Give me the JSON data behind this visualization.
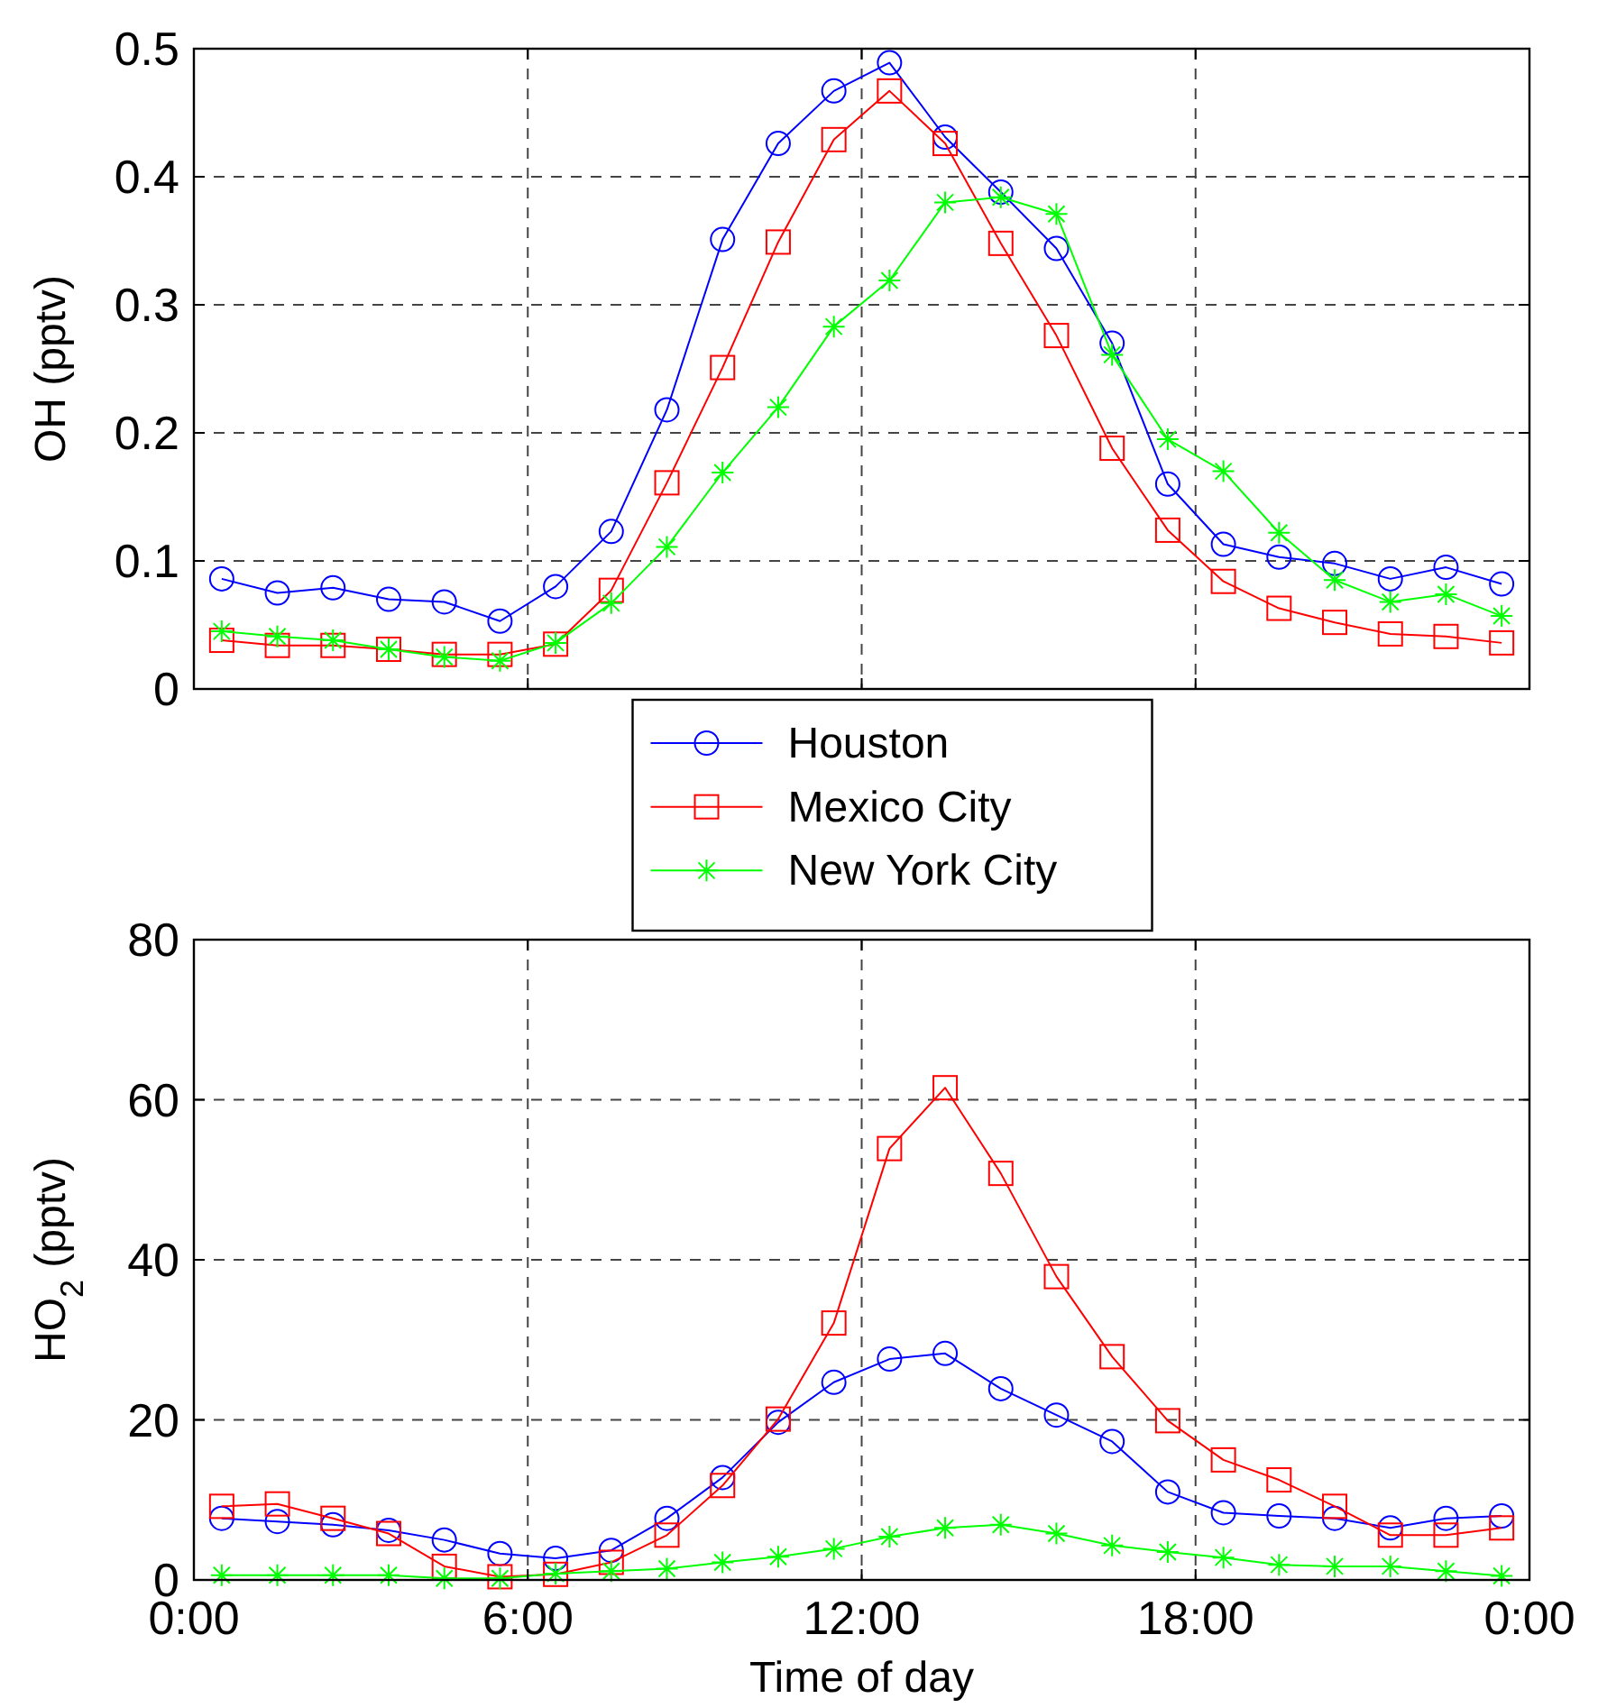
{
  "chart_data": [
    {
      "type": "line",
      "ylabel": "OH (pptv)",
      "x": [
        0.5,
        1.5,
        2.5,
        3.5,
        4.5,
        5.5,
        6.5,
        7.5,
        8.5,
        9.5,
        10.5,
        11.5,
        12.5,
        13.5,
        14.5,
        15.5,
        16.5,
        17.5,
        18.5,
        19.5,
        20.5,
        21.5,
        22.5,
        23.5
      ],
      "xlim": [
        0,
        24
      ],
      "xticks": [
        {
          "value": 0,
          "label": null
        },
        {
          "value": 6,
          "label": null
        },
        {
          "value": 12,
          "label": null
        },
        {
          "value": 18,
          "label": null
        },
        {
          "value": 24,
          "label": null
        }
      ],
      "ylim": [
        0,
        0.5
      ],
      "yticks": [
        0,
        0.1,
        0.2,
        0.3,
        0.4,
        0.5
      ],
      "grid": true,
      "legend": "bottom",
      "tick_labels": "y",
      "line_style": "solid",
      "series": [
        {
          "name": "Houston",
          "color": "#0000ff",
          "marker": "circle",
          "values": [
            0.086,
            0.075,
            0.079,
            0.07,
            0.068,
            0.053,
            0.08,
            0.123,
            0.218,
            0.351,
            0.426,
            0.467,
            0.489,
            0.431,
            0.388,
            0.344,
            0.27,
            0.16,
            0.113,
            0.103,
            0.098,
            0.086,
            0.095,
            0.082
          ]
        },
        {
          "name": "Mexico City",
          "color": "#ff0000",
          "marker": "square",
          "values": [
            0.038,
            0.034,
            0.034,
            0.031,
            0.027,
            0.027,
            0.035,
            0.077,
            0.161,
            0.251,
            0.349,
            0.429,
            0.467,
            0.426,
            0.348,
            0.276,
            0.188,
            0.124,
            0.084,
            0.063,
            0.052,
            0.043,
            0.041,
            0.036
          ]
        },
        {
          "name": "New York City",
          "color": "#00ff00",
          "marker": "cross",
          "values": [
            0.045,
            0.041,
            0.038,
            0.031,
            0.025,
            0.022,
            0.036,
            0.067,
            0.111,
            0.169,
            0.22,
            0.283,
            0.319,
            0.38,
            0.384,
            0.371,
            0.261,
            0.195,
            0.17,
            0.122,
            0.085,
            0.068,
            0.074,
            0.057
          ]
        }
      ]
    },
    {
      "type": "line",
      "xlabel": "Time of day",
      "ylabel": "HO$_{2}$ (pptv)",
      "x": [
        0.5,
        1.5,
        2.5,
        3.5,
        4.5,
        5.5,
        6.5,
        7.5,
        8.5,
        9.5,
        10.5,
        11.5,
        12.5,
        13.5,
        14.5,
        15.5,
        16.5,
        17.5,
        18.5,
        19.5,
        20.5,
        21.5,
        22.5,
        23.5
      ],
      "xlim": [
        0,
        24
      ],
      "xticks": [
        {
          "value": 0,
          "label": "0:00"
        },
        {
          "value": 6,
          "label": "6:00"
        },
        {
          "value": 12,
          "label": "12:00"
        },
        {
          "value": 18,
          "label": "18:00"
        },
        {
          "value": 24,
          "label": "0:00"
        }
      ],
      "ylim": [
        0,
        80
      ],
      "yticks": [
        0,
        20,
        40,
        60,
        80
      ],
      "grid": true,
      "line_style": "solid",
      "series": [
        {
          "color": "#0000ff",
          "marker": "circle",
          "values": [
            7.7,
            7.3,
            6.9,
            6.2,
            5.0,
            3.3,
            2.7,
            3.7,
            7.7,
            12.8,
            19.7,
            24.7,
            27.6,
            28.3,
            23.9,
            20.6,
            17.3,
            11.0,
            8.4,
            8.0,
            7.7,
            6.5,
            7.7,
            8.0
          ]
        },
        {
          "color": "#ff0000",
          "marker": "square",
          "values": [
            9.2,
            9.5,
            7.7,
            5.8,
            1.7,
            0.4,
            0.7,
            2.2,
            5.6,
            11.8,
            20.1,
            32.1,
            53.9,
            61.5,
            50.8,
            37.9,
            27.9,
            19.9,
            15.0,
            12.5,
            9.2,
            5.6,
            5.6,
            6.5
          ]
        },
        {
          "color": "#00ff00",
          "marker": "cross",
          "values": [
            0.6,
            0.6,
            0.6,
            0.6,
            0.2,
            0.2,
            0.8,
            1.1,
            1.4,
            2.2,
            2.9,
            3.9,
            5.4,
            6.5,
            6.9,
            5.8,
            4.3,
            3.5,
            2.8,
            1.9,
            1.7,
            1.7,
            1.1,
            0.5
          ]
        }
      ]
    }
  ]
}
